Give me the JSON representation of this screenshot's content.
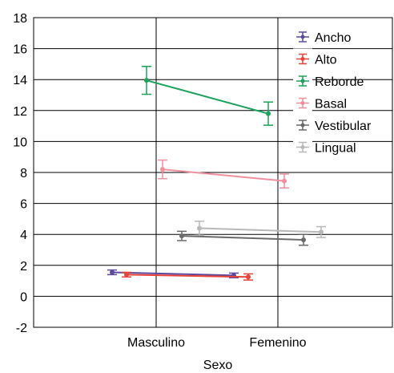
{
  "chart_data": {
    "type": "line",
    "title": "",
    "xlabel": "Sexo",
    "ylabel": "",
    "categories": [
      "Masculino",
      "Femenino"
    ],
    "ylim": [
      -2,
      18
    ],
    "yticks": [
      18,
      16,
      14,
      12,
      10,
      8,
      6,
      4,
      2,
      0,
      -2
    ],
    "grid": true,
    "legend_position": "top-right",
    "error_bars": true,
    "series": [
      {
        "name": "Ancho",
        "color": "#5b4a9e",
        "values": [
          1.55,
          1.35
        ],
        "errors": [
          0.15,
          0.15
        ]
      },
      {
        "name": "Alto",
        "color": "#e8423a",
        "values": [
          1.4,
          1.25
        ],
        "errors": [
          0.15,
          0.2
        ]
      },
      {
        "name": "Reborde",
        "color": "#1aa35a",
        "values": [
          13.95,
          11.8
        ],
        "errors": [
          0.9,
          0.75
        ]
      },
      {
        "name": "Basal",
        "color": "#f08f9e",
        "values": [
          8.2,
          7.45
        ],
        "errors": [
          0.6,
          0.45
        ]
      },
      {
        "name": "Vestibular",
        "color": "#6a6a6a",
        "values": [
          3.9,
          3.65
        ],
        "errors": [
          0.3,
          0.35
        ]
      },
      {
        "name": "Lingual",
        "color": "#b8b8b8",
        "values": [
          4.4,
          4.15
        ],
        "errors": [
          0.45,
          0.35
        ]
      }
    ]
  }
}
